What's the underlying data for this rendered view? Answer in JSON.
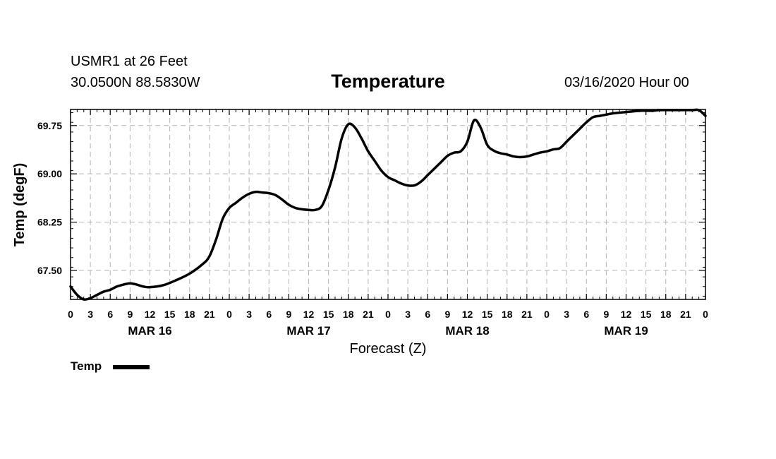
{
  "header": {
    "station": "USMR1 at 26 Feet",
    "coordinates": "30.0500N 88.5830W",
    "title": "Temperature",
    "datetime": "03/16/2020 Hour 00"
  },
  "legend": {
    "label": "Temp"
  },
  "colors": {
    "line": "#000000",
    "grid": "#b4b4b4",
    "background": "#ffffff"
  },
  "chart_data": {
    "type": "line",
    "title": "Temperature",
    "xlabel": "Forecast (Z)",
    "ylabel": "Temp (degF)",
    "xlim": [
      0,
      96
    ],
    "ylim": [
      67.05,
      70.0
    ],
    "yticks": [
      67.5,
      68.25,
      69.0,
      69.75
    ],
    "ytick_labels": [
      "67.50",
      "68.25",
      "69.00",
      "69.75"
    ],
    "xticks": [
      0,
      3,
      6,
      9,
      12,
      15,
      18,
      21,
      24,
      27,
      30,
      33,
      36,
      39,
      42,
      45,
      48,
      51,
      54,
      57,
      60,
      63,
      66,
      69,
      72,
      75,
      78,
      81,
      84,
      87,
      90,
      93,
      96
    ],
    "xtick_labels": [
      "0",
      "3",
      "6",
      "9",
      "12",
      "15",
      "18",
      "21",
      "0",
      "3",
      "6",
      "9",
      "12",
      "15",
      "18",
      "21",
      "0",
      "3",
      "6",
      "9",
      "12",
      "15",
      "18",
      "21",
      "0",
      "3",
      "6",
      "9",
      "12",
      "15",
      "18",
      "21",
      "0"
    ],
    "day_labels": [
      {
        "label": "MAR 16",
        "hour": 12
      },
      {
        "label": "MAR 17",
        "hour": 36
      },
      {
        "label": "MAR 18",
        "hour": 60
      },
      {
        "label": "MAR 19",
        "hour": 84
      }
    ],
    "grid": true,
    "legend_position": "bottom-left",
    "series": [
      {
        "name": "Temp",
        "x": [
          0,
          1,
          2,
          3,
          4,
          5,
          6,
          7,
          8,
          9,
          10,
          11,
          12,
          14,
          16,
          18,
          20,
          21,
          22,
          23,
          24,
          25,
          26,
          27,
          28,
          29,
          30,
          31,
          32,
          33,
          34,
          35,
          36,
          37,
          38,
          39,
          40,
          41,
          42,
          43,
          44,
          45,
          46,
          47,
          48,
          49,
          50,
          51,
          52,
          53,
          54,
          55,
          56,
          57,
          58,
          59,
          60,
          61,
          62,
          63,
          64,
          65,
          66,
          67,
          68,
          69,
          70,
          71,
          72,
          73,
          74,
          75,
          76,
          77,
          78,
          79,
          80,
          81,
          82,
          83,
          84,
          85,
          86,
          87,
          88,
          89,
          90,
          91,
          92,
          93,
          94,
          95,
          96
        ],
        "values": [
          67.25,
          67.12,
          67.05,
          67.07,
          67.12,
          67.17,
          67.2,
          67.25,
          67.28,
          67.3,
          67.28,
          67.25,
          67.24,
          67.27,
          67.35,
          67.45,
          67.6,
          67.72,
          67.98,
          68.3,
          68.47,
          68.55,
          68.63,
          68.69,
          68.72,
          68.71,
          68.7,
          68.67,
          68.6,
          68.52,
          68.47,
          68.45,
          68.44,
          68.44,
          68.5,
          68.75,
          69.1,
          69.55,
          69.77,
          69.72,
          69.55,
          69.35,
          69.2,
          69.05,
          68.95,
          68.9,
          68.85,
          68.82,
          68.82,
          68.88,
          68.98,
          69.08,
          69.18,
          69.28,
          69.33,
          69.35,
          69.5,
          69.83,
          69.72,
          69.45,
          69.36,
          69.32,
          69.3,
          69.27,
          69.26,
          69.27,
          69.3,
          69.33,
          69.35,
          69.38,
          69.4,
          69.5,
          69.6,
          69.7,
          69.8,
          69.88,
          69.9,
          69.92,
          69.94,
          69.95,
          69.96,
          69.97,
          69.98,
          69.98,
          69.98,
          69.99,
          69.99,
          69.99,
          69.99,
          69.99,
          69.99,
          69.99,
          69.9
        ]
      }
    ]
  }
}
